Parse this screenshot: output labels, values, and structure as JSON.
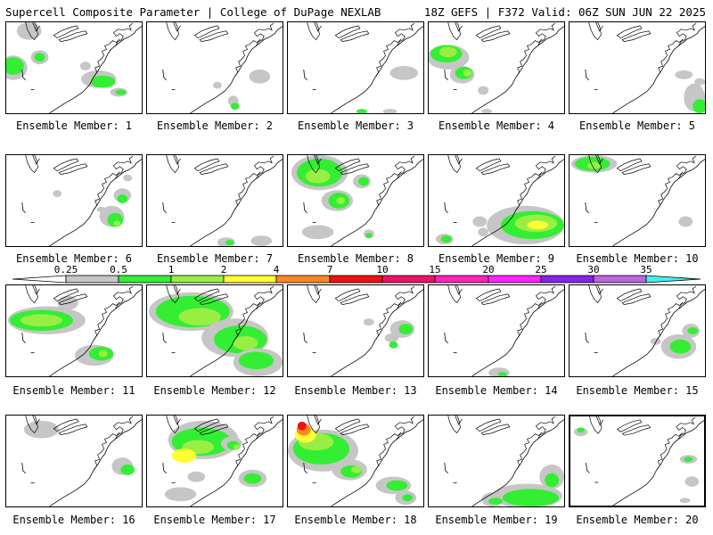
{
  "header": {
    "left": "Supercell Composite Parameter | College of DuPage NEXLAB",
    "right": "18Z GEFS | F372 Valid: 06Z SUN JUN 22 2025"
  },
  "colorbar": {
    "ticks": [
      "0.25",
      "0.5",
      "1",
      "2",
      "4",
      "7",
      "10",
      "15",
      "20",
      "25",
      "30",
      "35"
    ],
    "colors": [
      "#c6c6c6",
      "#33ee33",
      "#99ee44",
      "#ffff33",
      "#ff8822",
      "#ee1111",
      "#ee1166",
      "#ff22bb",
      "#ff22ff",
      "#8822ee",
      "#bb66dd",
      "#44eeee"
    ]
  },
  "members": [
    {
      "label": "Ensemble Member: 1"
    },
    {
      "label": "Ensemble Member: 2"
    },
    {
      "label": "Ensemble Member: 3"
    },
    {
      "label": "Ensemble Member: 4"
    },
    {
      "label": "Ensemble Member: 5"
    },
    {
      "label": "Ensemble Member: 6"
    },
    {
      "label": "Ensemble Member: 7"
    },
    {
      "label": "Ensemble Member: 8"
    },
    {
      "label": "Ensemble Member: 9"
    },
    {
      "label": "Ensemble Member: 10"
    },
    {
      "label": "Ensemble Member: 11"
    },
    {
      "label": "Ensemble Member: 12"
    },
    {
      "label": "Ensemble Member: 13"
    },
    {
      "label": "Ensemble Member: 14"
    },
    {
      "label": "Ensemble Member: 15"
    },
    {
      "label": "Ensemble Member: 16"
    },
    {
      "label": "Ensemble Member: 17"
    },
    {
      "label": "Ensemble Member: 18"
    },
    {
      "label": "Ensemble Member: 19"
    },
    {
      "label": "Ensemble Member: 20"
    }
  ]
}
